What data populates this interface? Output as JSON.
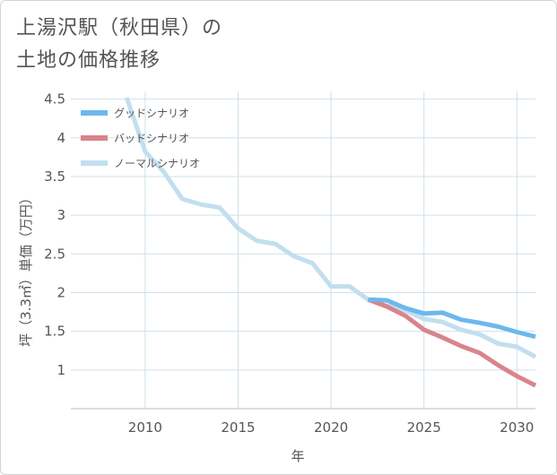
{
  "page": {
    "title_line1": "上湯沢駅（秋田県）の",
    "title_line2": "土地の価格推移"
  },
  "chart_data": {
    "type": "line",
    "title": "上湯沢駅（秋田県）の 土地の価格推移",
    "xlabel": "年",
    "ylabel": "坪（3.3㎡）単価（万円）",
    "xlim": [
      2006,
      2031
    ],
    "ylim": [
      0.5,
      4.6
    ],
    "x_ticks": [
      2010,
      2015,
      2020,
      2025,
      2030
    ],
    "y_ticks": [
      1,
      1.5,
      2,
      2.5,
      3,
      3.5,
      4,
      4.5
    ],
    "grid": true,
    "legend_position": "top-left",
    "series": [
      {
        "name": "グッドシナリオ",
        "color": "#6cb8ec",
        "x": [
          2022,
          2023,
          2024,
          2025,
          2026,
          2027,
          2028,
          2029,
          2030,
          2031
        ],
        "y": [
          1.91,
          1.9,
          1.8,
          1.73,
          1.74,
          1.65,
          1.61,
          1.56,
          1.49,
          1.43
        ]
      },
      {
        "name": "バッドシナリオ",
        "color": "#d9848c",
        "x": [
          2022,
          2023,
          2024,
          2025,
          2026,
          2027,
          2028,
          2029,
          2030,
          2031
        ],
        "y": [
          1.91,
          1.82,
          1.7,
          1.52,
          1.42,
          1.31,
          1.22,
          1.06,
          0.92,
          0.8
        ]
      },
      {
        "name": "ノーマルシナリオ",
        "color": "#c2dfef",
        "x": [
          2009,
          2010,
          2011,
          2012,
          2013,
          2014,
          2015,
          2016,
          2017,
          2018,
          2019,
          2020,
          2021,
          2022,
          2023,
          2024,
          2025,
          2026,
          2027,
          2028,
          2029,
          2030,
          2031
        ],
        "y": [
          4.52,
          3.82,
          3.56,
          3.21,
          3.14,
          3.1,
          2.83,
          2.67,
          2.63,
          2.47,
          2.38,
          2.08,
          2.08,
          1.91,
          1.83,
          1.77,
          1.66,
          1.62,
          1.52,
          1.46,
          1.34,
          1.3,
          1.17
        ]
      }
    ]
  }
}
